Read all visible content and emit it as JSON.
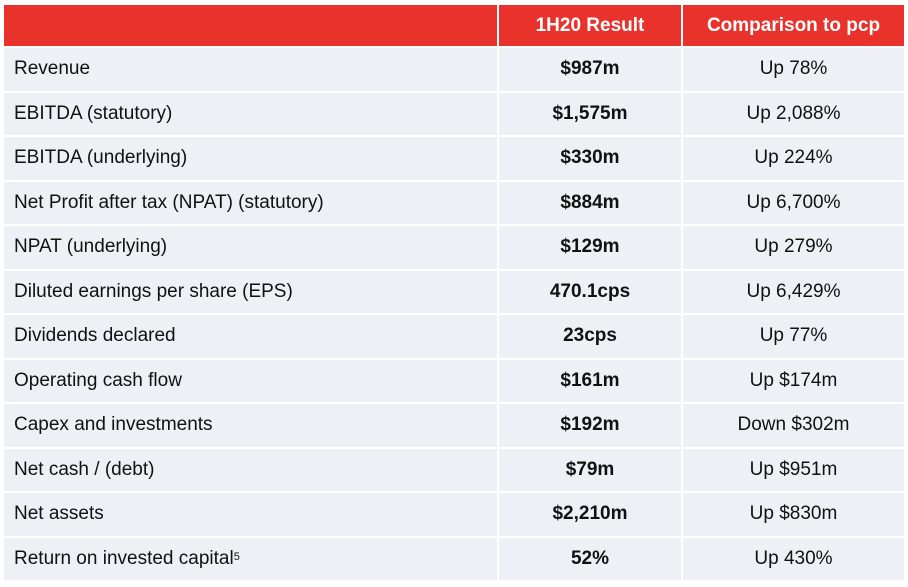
{
  "table": {
    "headers": [
      "",
      "1H20 Result",
      "Comparison to pcp"
    ],
    "rows": [
      {
        "metric": "Revenue",
        "sup": "",
        "result": "$987m",
        "comparison": "Up 78%"
      },
      {
        "metric": "EBITDA (statutory)",
        "sup": "",
        "result": "$1,575m",
        "comparison": "Up 2,088%"
      },
      {
        "metric": "EBITDA (underlying)",
        "sup": "",
        "result": "$330m",
        "comparison": "Up 224%"
      },
      {
        "metric": "Net Profit after tax (NPAT) (statutory)",
        "sup": "",
        "result": "$884m",
        "comparison": "Up 6,700%"
      },
      {
        "metric": "NPAT (underlying)",
        "sup": "",
        "result": "$129m",
        "comparison": "Up 279%"
      },
      {
        "metric": "Diluted earnings per share (EPS)",
        "sup": "",
        "result": "470.1cps",
        "comparison": "Up 6,429%"
      },
      {
        "metric": "Dividends declared",
        "sup": "",
        "result": "23cps",
        "comparison": "Up 77%"
      },
      {
        "metric": "Operating cash flow",
        "sup": "",
        "result": "$161m",
        "comparison": "Up $174m"
      },
      {
        "metric": "Capex and investments",
        "sup": "",
        "result": "$192m",
        "comparison": "Down $302m"
      },
      {
        "metric": "Net cash / (debt)",
        "sup": "",
        "result": "$79m",
        "comparison": "Up $951m"
      },
      {
        "metric": "Net assets",
        "sup": "",
        "result": "$2,210m",
        "comparison": "Up $830m"
      },
      {
        "metric": "Return on invested capital",
        "sup": "5",
        "result": "52%",
        "comparison": "Up 430%"
      }
    ]
  },
  "colors": {
    "header_bg": "#e8322b",
    "row_bg": "#eef0f6"
  }
}
